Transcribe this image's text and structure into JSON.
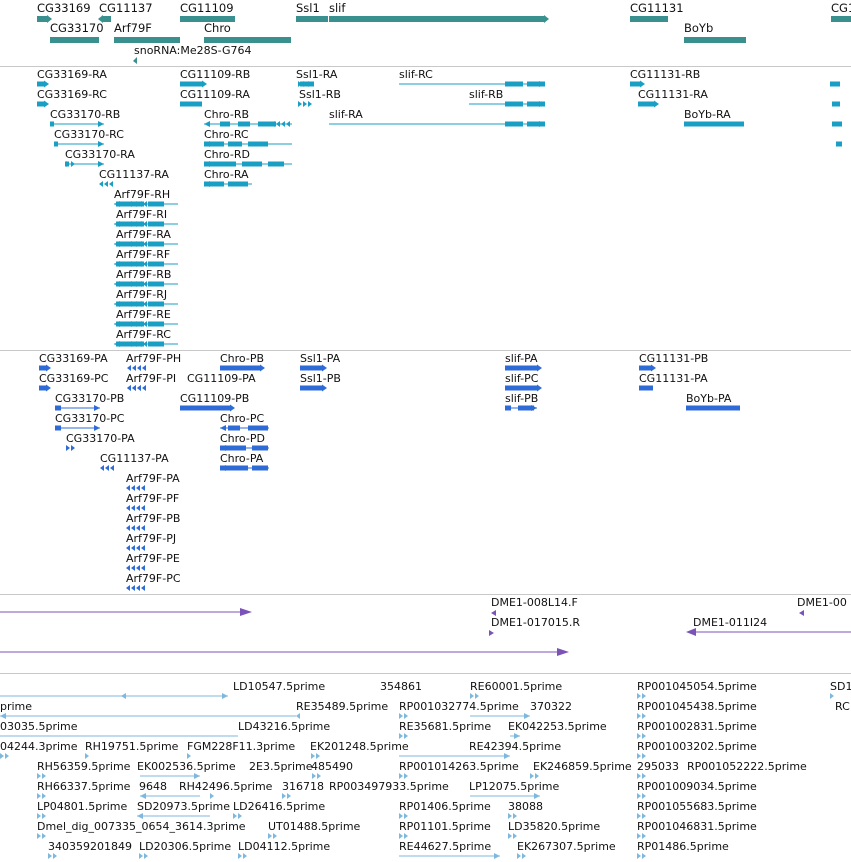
{
  "colors": {
    "gene": "#3a8f8f",
    "mrna": "#1a9fc4",
    "protein": "#2f6bd6",
    "clone": "#7b53b8",
    "est": "#7fb8de",
    "line": "#c8c8c8"
  },
  "tracks": {
    "genes": [
      "CG33169",
      "CG11137",
      "CG11109",
      "Ssl1",
      "slif",
      "CG11131",
      "CG1",
      "CG33170",
      "Arf79F",
      "Chro",
      "BoYb",
      "snoRNA:Me28S-G764"
    ],
    "transcripts": [
      "CG33169-RA",
      "CG11109-RB",
      "Ssl1-RA",
      "slif-RC",
      "CG11131-RB",
      "CG33169-RC",
      "CG11109-RA",
      "Ssl1-RB",
      "slif-RB",
      "CG11131-RA",
      "CG33170-RB",
      "Chro-RB",
      "slif-RA",
      "BoYb-RA",
      "CG33170-RC",
      "Chro-RC",
      "CG33170-RA",
      "Chro-RD",
      "CG11137-RA",
      "Chro-RA",
      "Arf79F-RH",
      "Arf79F-RI",
      "Arf79F-RA",
      "Arf79F-RF",
      "Arf79F-RB",
      "Arf79F-RJ",
      "Arf79F-RE",
      "Arf79F-RC"
    ],
    "proteins": [
      "CG33169-PA",
      "Arf79F-PH",
      "Chro-PB",
      "Ssl1-PA",
      "slif-PA",
      "CG11131-PB",
      "CG33169-PC",
      "Arf79F-PI",
      "CG11109-PA",
      "Ssl1-PB",
      "slif-PC",
      "CG11131-PA",
      "CG33170-PB",
      "CG11109-PB",
      "slif-PB",
      "BoYb-PA",
      "CG33170-PC",
      "Chro-PC",
      "CG33170-PA",
      "Chro-PD",
      "CG11137-PA",
      "Chro-PA",
      "Arf79F-PA",
      "Arf79F-PF",
      "Arf79F-PB",
      "Arf79F-PJ",
      "Arf79F-PE",
      "Arf79F-PC"
    ],
    "clones": [
      "DME1-008L14.F",
      "DME1-00",
      "DME1-017015.R",
      "DME1-011I24"
    ],
    "ests": [
      "LD10547.5prime",
      "354861",
      "RE60001.5prime",
      "RP001045054.5prime",
      "SD1",
      "prime",
      "RE35489.5prime",
      "RP001032774.5prime",
      "370322",
      "RP001045438.5prime",
      "RC",
      "03035.5prime",
      "LD43216.5prime",
      "RE35681.5prime",
      "EK042253.5prime",
      "RP001002831.5prime",
      "04244.3prime",
      "RH19751.5prime",
      "FGM228F11.3prime",
      "EK201248.5prime",
      "RE42394.5prime",
      "RP001003202.5prime",
      "RH56359.5prime",
      "EK002536.5prime",
      "2E3.5prime",
      "485490",
      "RP001014263.5prime",
      "EK246859.5prime",
      "295033",
      "RP001052222.5prime",
      "RH66337.5prime",
      "9648",
      "RH42496.5prime",
      "316718",
      "RP003497933.5prime",
      "LP12075.5prime",
      "RP001009034.5prime",
      "LP04801.5prime",
      "SD20973.5prime",
      "LD26416.5prime",
      "RP01406.5prime",
      "38088",
      "RP001055683.5prime",
      "Dmel_dig_007335_0654_3614.3prime",
      "UT01488.5prime",
      "RP01101.5prime",
      "LD35820.5prime",
      "RP001046831.5prime",
      "340359201849",
      "LD20306.5prime",
      "LD04112.5prime",
      "RE44627.5prime",
      "EK267307.5prime",
      "RP01486.5prime"
    ]
  }
}
